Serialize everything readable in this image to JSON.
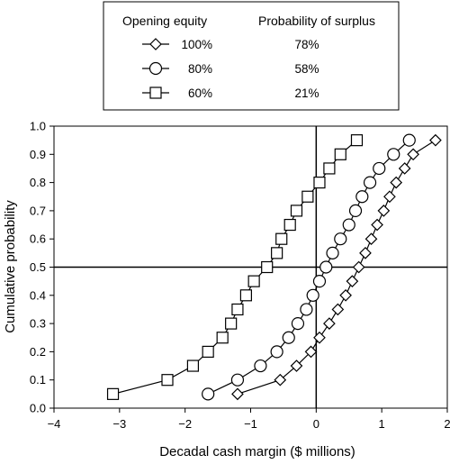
{
  "chart_data": {
    "type": "line",
    "xlabel": "Decadal cash margin ($ millions)",
    "ylabel": "Cumulative probability",
    "xlim": [
      -4,
      2
    ],
    "ylim": [
      0,
      1
    ],
    "xticks": [
      "−4",
      "−3",
      "−2",
      "−1",
      "0",
      "1",
      "2"
    ],
    "yticks": [
      "0.0",
      "0.1",
      "0.2",
      "0.3",
      "0.4",
      "0.5",
      "0.6",
      "0.7",
      "0.8",
      "0.9",
      "1.0"
    ],
    "reference_lines": {
      "x": 0,
      "y": 0.5
    },
    "grid": false,
    "legend": {
      "placement": "top",
      "header_left": "Opening equity",
      "header_right": "Probability of surplus",
      "entries": [
        {
          "label": "100%",
          "marker": "diamond",
          "probability": "78%"
        },
        {
          "label": "80%",
          "marker": "circle",
          "probability": "58%"
        },
        {
          "label": "60%",
          "marker": "square",
          "probability": "21%"
        }
      ]
    },
    "series": [
      {
        "name": "100%",
        "marker": "diamond",
        "points": [
          [
            -1.2,
            0.05
          ],
          [
            -0.55,
            0.1
          ],
          [
            -0.3,
            0.15
          ],
          [
            -0.08,
            0.2
          ],
          [
            0.05,
            0.25
          ],
          [
            0.2,
            0.3
          ],
          [
            0.33,
            0.35
          ],
          [
            0.45,
            0.4
          ],
          [
            0.55,
            0.45
          ],
          [
            0.65,
            0.5
          ],
          [
            0.75,
            0.55
          ],
          [
            0.84,
            0.6
          ],
          [
            0.93,
            0.65
          ],
          [
            1.03,
            0.7
          ],
          [
            1.12,
            0.75
          ],
          [
            1.22,
            0.8
          ],
          [
            1.35,
            0.85
          ],
          [
            1.48,
            0.9
          ],
          [
            1.82,
            0.95
          ]
        ]
      },
      {
        "name": "80%",
        "marker": "circle",
        "points": [
          [
            -1.65,
            0.05
          ],
          [
            -1.2,
            0.1
          ],
          [
            -0.85,
            0.15
          ],
          [
            -0.6,
            0.2
          ],
          [
            -0.42,
            0.25
          ],
          [
            -0.28,
            0.3
          ],
          [
            -0.15,
            0.35
          ],
          [
            -0.05,
            0.4
          ],
          [
            0.05,
            0.45
          ],
          [
            0.15,
            0.5
          ],
          [
            0.25,
            0.55
          ],
          [
            0.37,
            0.6
          ],
          [
            0.5,
            0.65
          ],
          [
            0.6,
            0.7
          ],
          [
            0.7,
            0.75
          ],
          [
            0.82,
            0.8
          ],
          [
            0.96,
            0.85
          ],
          [
            1.18,
            0.9
          ],
          [
            1.42,
            0.95
          ]
        ]
      },
      {
        "name": "60%",
        "marker": "square",
        "points": [
          [
            -3.1,
            0.05
          ],
          [
            -2.27,
            0.1
          ],
          [
            -1.88,
            0.15
          ],
          [
            -1.65,
            0.2
          ],
          [
            -1.43,
            0.25
          ],
          [
            -1.3,
            0.3
          ],
          [
            -1.2,
            0.35
          ],
          [
            -1.07,
            0.4
          ],
          [
            -0.95,
            0.45
          ],
          [
            -0.75,
            0.5
          ],
          [
            -0.6,
            0.55
          ],
          [
            -0.53,
            0.6
          ],
          [
            -0.4,
            0.65
          ],
          [
            -0.3,
            0.7
          ],
          [
            -0.13,
            0.75
          ],
          [
            0.05,
            0.8
          ],
          [
            0.2,
            0.85
          ],
          [
            0.37,
            0.9
          ],
          [
            0.62,
            0.95
          ]
        ]
      }
    ]
  }
}
